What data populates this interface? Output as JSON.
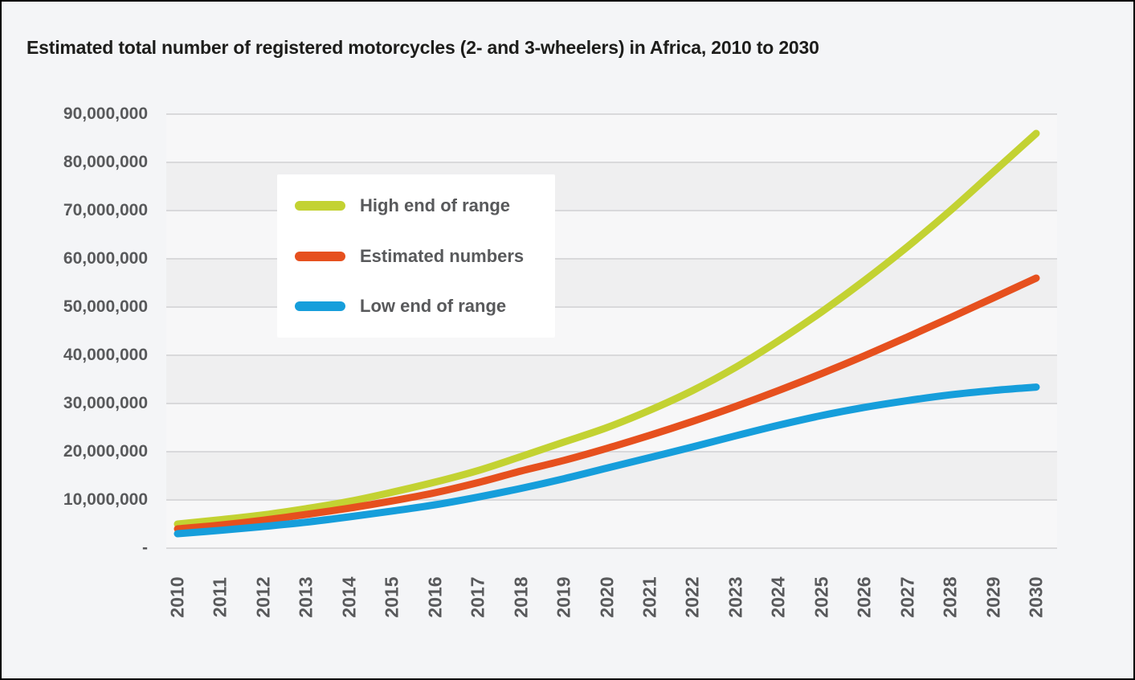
{
  "title": "Estimated total number of registered motorcycles (2- and 3-wheelers) in Africa, 2010 to 2030",
  "chart_data": {
    "type": "line",
    "title": "Estimated total number of registered motorcycles (2- and 3-wheelers) in Africa, 2010 to 2030",
    "x": [
      2010,
      2011,
      2012,
      2013,
      2014,
      2015,
      2016,
      2017,
      2018,
      2019,
      2020,
      2021,
      2022,
      2023,
      2024,
      2025,
      2026,
      2027,
      2028,
      2029,
      2030
    ],
    "x_tick_labels": [
      "2010",
      "2011",
      "2012",
      "2013",
      "2014",
      "2015",
      "2016",
      "2017",
      "2018",
      "2019",
      "2020",
      "2021",
      "2022",
      "2023",
      "2024",
      "2025",
      "2026",
      "2027",
      "2028",
      "2029",
      "2030"
    ],
    "series": [
      {
        "name": "High end of range",
        "color": "#c3d232",
        "values": [
          5000000,
          5900000,
          6900000,
          8200000,
          9700000,
          11600000,
          13700000,
          16100000,
          19000000,
          22000000,
          25000000,
          28600000,
          32700000,
          37500000,
          43000000,
          49000000,
          55500000,
          62500000,
          70000000,
          78000000,
          86000000
        ]
      },
      {
        "name": "Estimated numbers",
        "color": "#e6501e",
        "values": [
          4000000,
          4800000,
          5800000,
          7000000,
          8300000,
          9800000,
          11500000,
          13600000,
          16000000,
          18200000,
          20700000,
          23400000,
          26300000,
          29400000,
          32700000,
          36200000,
          39900000,
          43800000,
          47800000,
          51900000,
          56000000
        ]
      },
      {
        "name": "Low end of range",
        "color": "#169edb",
        "values": [
          3000000,
          3700000,
          4500000,
          5400000,
          6500000,
          7700000,
          9000000,
          10600000,
          12400000,
          14400000,
          16600000,
          18800000,
          21000000,
          23300000,
          25500000,
          27500000,
          29200000,
          30600000,
          31800000,
          32700000,
          33400000
        ]
      }
    ],
    "ylim": [
      0,
      90000000
    ],
    "ytick_interval": 10000000,
    "ytick_labels": [
      "-",
      "10,000,000",
      "20,000,000",
      "30,000,000",
      "40,000,000",
      "50,000,000",
      "60,000,000",
      "70,000,000",
      "80,000,000",
      "90,000,000"
    ],
    "xlabel": "",
    "ylabel": "",
    "grid": "horizontal",
    "legend_position": "top-left-inside",
    "plot_band_colors": [
      "#f7f7f8",
      "#efeff0"
    ],
    "gridline_color": "#d9d9db"
  },
  "colors": {
    "background": "#f4f5f7",
    "frame_border": "#000000",
    "axis_text": "#58595b",
    "title_text": "#1d1d1b",
    "legend_background": "#ffffff"
  }
}
